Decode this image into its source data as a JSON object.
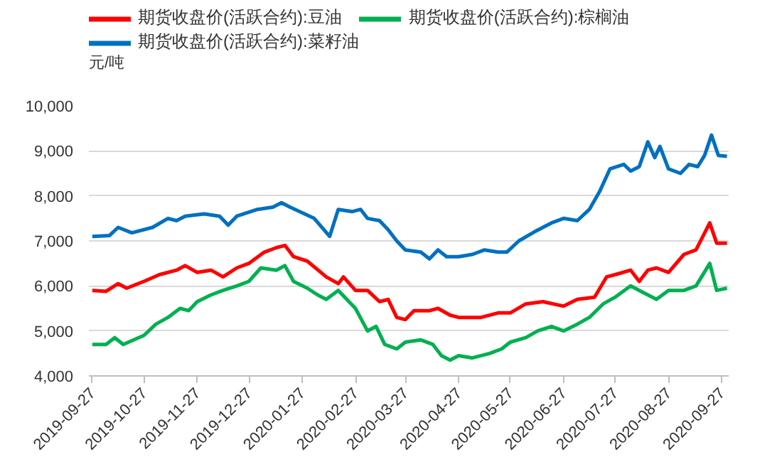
{
  "chart_data": {
    "type": "line",
    "ylabel": "元/吨",
    "ylim": [
      4000,
      10000
    ],
    "yticks": [
      {
        "value": 4000,
        "label": "4,000"
      },
      {
        "value": 5000,
        "label": "5,000"
      },
      {
        "value": 6000,
        "label": "6,000"
      },
      {
        "value": 7000,
        "label": "7,000"
      },
      {
        "value": 8000,
        "label": "8,000"
      },
      {
        "value": 9000,
        "label": "9,000"
      },
      {
        "value": 10000,
        "label": "10,000"
      }
    ],
    "xlim": [
      "2019-09-25",
      "2020-10-01"
    ],
    "xticks": [
      "2019-09-27",
      "2019-10-27",
      "2019-11-27",
      "2019-12-27",
      "2020-01-27",
      "2020-02-27",
      "2020-03-27",
      "2020-04-27",
      "2020-05-27",
      "2020-06-27",
      "2020-07-27",
      "2020-08-27",
      "2020-09-27"
    ],
    "grid": "y",
    "legend": "top",
    "line_style": "solid",
    "marker": "none",
    "series": [
      {
        "name": "期货收盘价(活跃合约):豆油",
        "color": "#ff0000",
        "x": [
          "2019-09-27",
          "2019-10-05",
          "2019-10-12",
          "2019-10-17",
          "2019-10-27",
          "2019-11-05",
          "2019-11-15",
          "2019-11-20",
          "2019-11-27",
          "2019-12-05",
          "2019-12-12",
          "2019-12-20",
          "2019-12-27",
          "2020-01-05",
          "2020-01-12",
          "2020-01-17",
          "2020-01-22",
          "2020-01-30",
          "2020-02-10",
          "2020-02-17",
          "2020-02-20",
          "2020-02-27",
          "2020-03-05",
          "2020-03-12",
          "2020-03-17",
          "2020-03-22",
          "2020-03-27",
          "2020-04-01",
          "2020-04-10",
          "2020-04-15",
          "2020-04-22",
          "2020-04-27",
          "2020-05-10",
          "2020-05-20",
          "2020-05-27",
          "2020-06-05",
          "2020-06-15",
          "2020-06-27",
          "2020-07-05",
          "2020-07-15",
          "2020-07-22",
          "2020-07-27",
          "2020-08-05",
          "2020-08-10",
          "2020-08-15",
          "2020-08-20",
          "2020-08-27",
          "2020-09-05",
          "2020-09-12",
          "2020-09-20",
          "2020-09-24",
          "2020-09-30"
        ],
        "values": [
          5900,
          5880,
          6050,
          5950,
          6100,
          6250,
          6350,
          6450,
          6300,
          6350,
          6200,
          6400,
          6500,
          6750,
          6850,
          6900,
          6650,
          6550,
          6200,
          6050,
          6200,
          5900,
          5900,
          5650,
          5700,
          5300,
          5250,
          5450,
          5450,
          5500,
          5350,
          5300,
          5300,
          5400,
          5400,
          5600,
          5650,
          5550,
          5700,
          5750,
          6200,
          6250,
          6350,
          6100,
          6350,
          6400,
          6300,
          6700,
          6800,
          7400,
          6950,
          6950
        ]
      },
      {
        "name": "期货收盘价(活跃合约):棕榈油",
        "color": "#00b050",
        "x": [
          "2019-09-27",
          "2019-10-05",
          "2019-10-10",
          "2019-10-15",
          "2019-10-27",
          "2019-11-03",
          "2019-11-10",
          "2019-11-17",
          "2019-11-22",
          "2019-11-27",
          "2019-12-05",
          "2019-12-12",
          "2019-12-20",
          "2019-12-27",
          "2020-01-03",
          "2020-01-12",
          "2020-01-17",
          "2020-01-22",
          "2020-01-30",
          "2020-02-05",
          "2020-02-10",
          "2020-02-17",
          "2020-02-27",
          "2020-03-05",
          "2020-03-10",
          "2020-03-15",
          "2020-03-22",
          "2020-03-27",
          "2020-04-05",
          "2020-04-12",
          "2020-04-17",
          "2020-04-22",
          "2020-04-27",
          "2020-05-05",
          "2020-05-15",
          "2020-05-22",
          "2020-05-27",
          "2020-06-05",
          "2020-06-12",
          "2020-06-20",
          "2020-06-27",
          "2020-07-05",
          "2020-07-12",
          "2020-07-20",
          "2020-07-27",
          "2020-08-05",
          "2020-08-10",
          "2020-08-15",
          "2020-08-20",
          "2020-08-27",
          "2020-09-05",
          "2020-09-12",
          "2020-09-20",
          "2020-09-24",
          "2020-09-30"
        ],
        "values": [
          4700,
          4700,
          4850,
          4700,
          4900,
          5150,
          5300,
          5500,
          5450,
          5650,
          5800,
          5900,
          6000,
          6100,
          6400,
          6350,
          6450,
          6100,
          5950,
          5800,
          5700,
          5900,
          5500,
          5000,
          5100,
          4700,
          4600,
          4750,
          4800,
          4700,
          4450,
          4350,
          4450,
          4400,
          4500,
          4600,
          4750,
          4850,
          5000,
          5100,
          5000,
          5150,
          5300,
          5600,
          5750,
          6000,
          5900,
          5800,
          5700,
          5900,
          5900,
          6000,
          6500,
          5900,
          5950
        ]
      },
      {
        "name": "期货收盘价(活跃合约):菜籽油",
        "color": "#0070c0",
        "x": [
          "2019-09-27",
          "2019-10-07",
          "2019-10-12",
          "2019-10-20",
          "2019-11-01",
          "2019-11-10",
          "2019-11-15",
          "2019-11-20",
          "2019-12-01",
          "2019-12-10",
          "2019-12-15",
          "2019-12-20",
          "2020-01-01",
          "2020-01-10",
          "2020-01-15",
          "2020-01-20",
          "2020-02-03",
          "2020-02-12",
          "2020-02-17",
          "2020-02-25",
          "2020-03-01",
          "2020-03-05",
          "2020-03-12",
          "2020-03-17",
          "2020-03-22",
          "2020-03-27",
          "2020-04-05",
          "2020-04-10",
          "2020-04-15",
          "2020-04-20",
          "2020-04-27",
          "2020-05-05",
          "2020-05-12",
          "2020-05-20",
          "2020-05-25",
          "2020-06-01",
          "2020-06-10",
          "2020-06-20",
          "2020-06-27",
          "2020-07-05",
          "2020-07-12",
          "2020-07-18",
          "2020-07-24",
          "2020-08-01",
          "2020-08-05",
          "2020-08-10",
          "2020-08-15",
          "2020-08-19",
          "2020-08-22",
          "2020-08-27",
          "2020-09-03",
          "2020-09-08",
          "2020-09-13",
          "2020-09-17",
          "2020-09-21",
          "2020-09-25",
          "2020-09-30"
        ],
        "values": [
          7100,
          7120,
          7300,
          7180,
          7300,
          7500,
          7450,
          7550,
          7600,
          7550,
          7350,
          7550,
          7700,
          7750,
          7850,
          7750,
          7500,
          7100,
          7700,
          7650,
          7700,
          7500,
          7450,
          7250,
          7000,
          6800,
          6750,
          6600,
          6800,
          6650,
          6650,
          6700,
          6800,
          6750,
          6750,
          7000,
          7200,
          7400,
          7500,
          7450,
          7700,
          8100,
          8600,
          8700,
          8550,
          8650,
          9200,
          8850,
          9100,
          8600,
          8500,
          8700,
          8650,
          8900,
          9350,
          8900,
          8880
        ]
      }
    ]
  }
}
